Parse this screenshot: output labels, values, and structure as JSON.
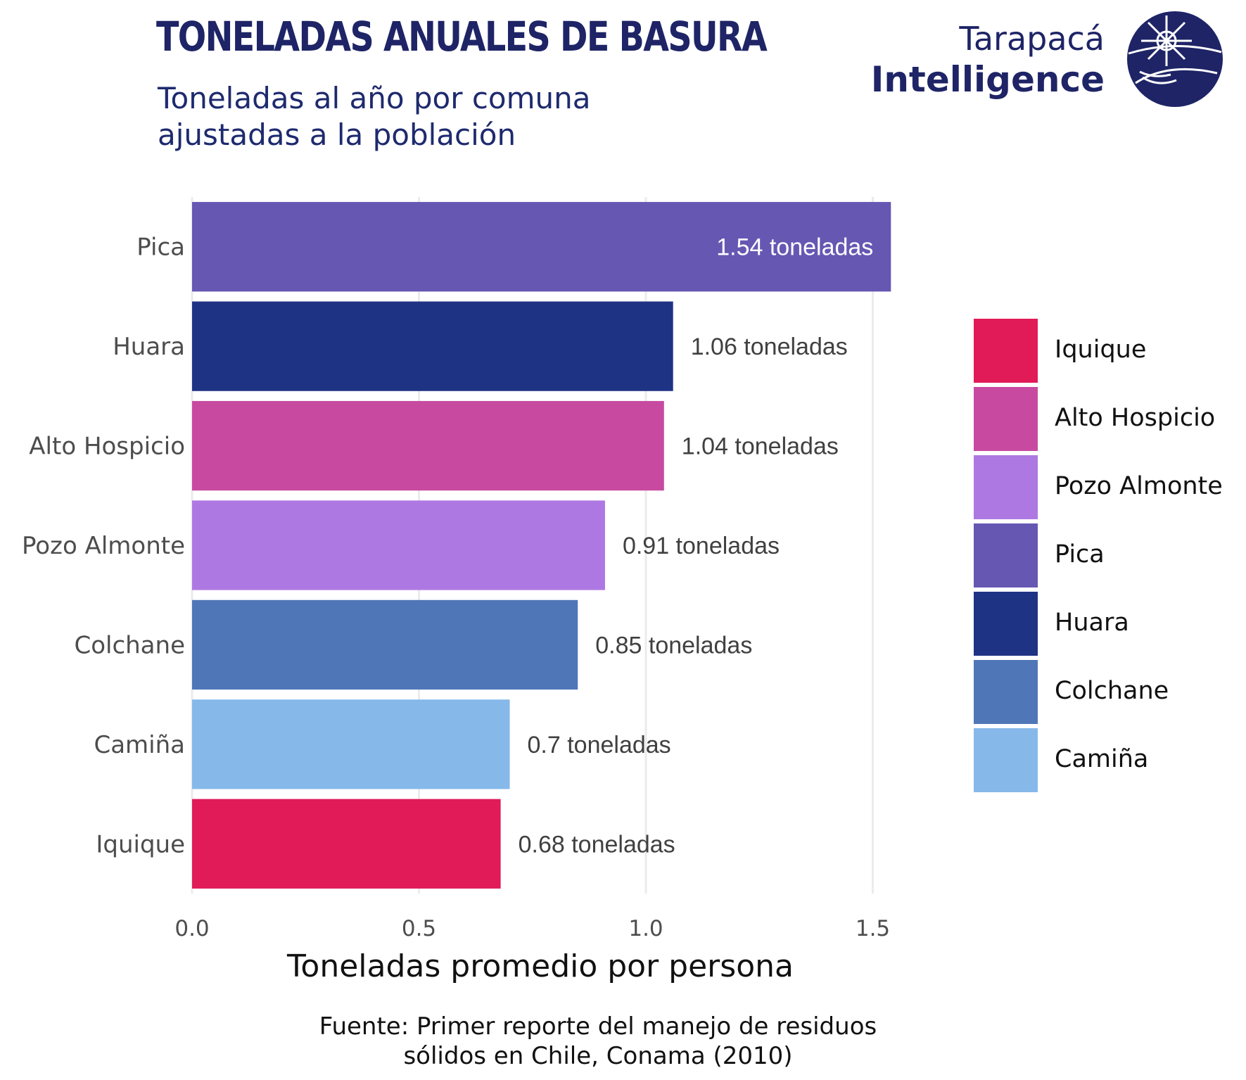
{
  "title": "TONELADAS ANUALES DE BASURA",
  "subtitle": "Toneladas al año por comuna ajustadas a la población",
  "logo": {
    "line1": "Tarapacá",
    "line2": "Intelligence",
    "icon": "globe-compass-icon"
  },
  "caption": "Fuente: Primer reporte del manejo de residuos sólidos en Chile, Conama (2010)",
  "chart_data": {
    "type": "bar",
    "orientation": "horizontal",
    "title": "TONELADAS ANUALES DE BASURA",
    "subtitle": "Toneladas al año por comuna ajustadas a la población",
    "xlabel": "Toneladas promedio por persona",
    "ylabel": "",
    "xlim": [
      0,
      1.57
    ],
    "xticks": [
      "0.0",
      "0.5",
      "1.0",
      "1.5"
    ],
    "xtick_values": [
      0,
      0.5,
      1.0,
      1.5
    ],
    "grid": "vertical",
    "categories": [
      "Pica",
      "Huara",
      "Alto Hospicio",
      "Pozo Almonte",
      "Colchane",
      "Camiña",
      "Iquique"
    ],
    "values": [
      1.54,
      1.06,
      1.04,
      0.91,
      0.85,
      0.7,
      0.68
    ],
    "data_labels": [
      "1.54 toneladas",
      "1.06 toneladas",
      "1.04 toneladas",
      "0.91 toneladas",
      "0.85 toneladas",
      "0.7 toneladas",
      "0.68 toneladas"
    ],
    "colors": [
      "#6657b3",
      "#1f3385",
      "#c84aa0",
      "#ae78e3",
      "#4f76b7",
      "#86b9ea",
      "#e11b58"
    ],
    "legend": {
      "placement": "right",
      "items": [
        {
          "label": "Iquique",
          "color": "#e11b58"
        },
        {
          "label": "Alto Hospicio",
          "color": "#c84aa0"
        },
        {
          "label": "Pozo Almonte",
          "color": "#ae78e3"
        },
        {
          "label": "Pica",
          "color": "#6657b3"
        },
        {
          "label": "Huara",
          "color": "#1f3385"
        },
        {
          "label": "Colchane",
          "color": "#4f76b7"
        },
        {
          "label": "Camiña",
          "color": "#86b9ea"
        }
      ]
    }
  }
}
